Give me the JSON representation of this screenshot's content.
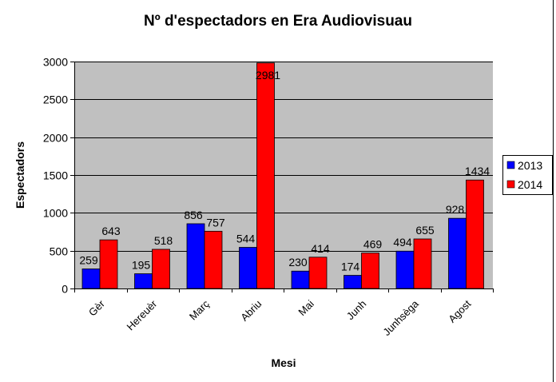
{
  "chart_data": {
    "type": "bar",
    "title": "Nº d'espectadors en Era Audiovisuau",
    "xlabel": "Mesi",
    "ylabel": "Espectadors",
    "ylim": [
      0,
      3000
    ],
    "yticks": [
      0,
      500,
      1000,
      1500,
      2000,
      2500,
      3000
    ],
    "grid": true,
    "legend_position": "right",
    "categories": [
      "Gèr",
      "Hereuèr",
      "Març",
      "Abriu",
      "Mai",
      "Junh",
      "Junhsèga",
      "Agost"
    ],
    "series": [
      {
        "name": "2013",
        "color": "#0000ff",
        "values": [
          259,
          195,
          856,
          544,
          230,
          174,
          494,
          928
        ]
      },
      {
        "name": "2014",
        "color": "#ff0000",
        "values": [
          643,
          518,
          757,
          2981,
          414,
          469,
          655,
          1434
        ]
      }
    ],
    "plot_background": "#c0c0c0"
  }
}
